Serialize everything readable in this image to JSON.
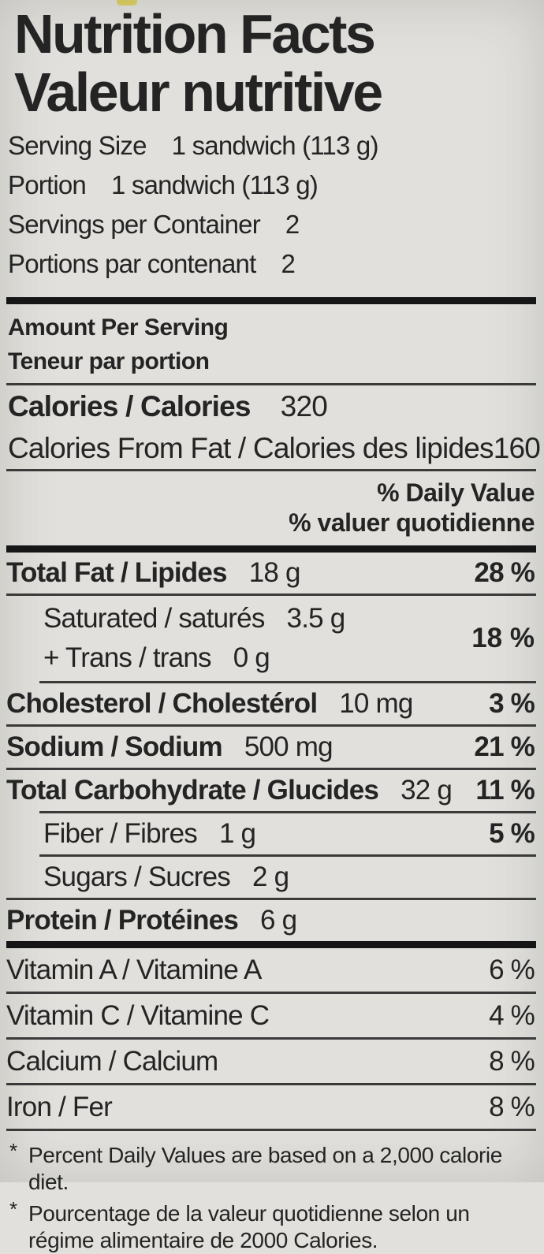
{
  "header": {
    "title_en": "Nutrition Facts",
    "title_fr": "Valeur nutritive"
  },
  "serving": {
    "rows": [
      {
        "label": "Serving Size",
        "value": "1 sandwich (113 g)"
      },
      {
        "label": "Portion",
        "value": "1 sandwich (113 g)"
      },
      {
        "label": "Servings per Container",
        "value": "2"
      },
      {
        "label": "Portions par contenant",
        "value": "2"
      }
    ]
  },
  "amount_per_serving": {
    "en": "Amount Per Serving",
    "fr": "Teneur par portion"
  },
  "calories": {
    "label": "Calories / Calories",
    "value": "320"
  },
  "calories_from_fat": {
    "label": "Calories From Fat / Calories des lipides",
    "value": "160"
  },
  "daily_value_header": {
    "en": "% Daily Value",
    "fr": "% valuer quotidienne"
  },
  "nutrients": {
    "total_fat": {
      "label": "Total Fat / Lipides",
      "qty": "18 g",
      "dv": "28 %"
    },
    "saturated": {
      "label": "Saturated / saturés",
      "qty": "3.5 g"
    },
    "trans": {
      "label": "+ Trans / trans",
      "qty": "0 g"
    },
    "saturated_trans_dv": "18 %",
    "cholesterol": {
      "label": "Cholesterol / Cholestérol",
      "qty": "10 mg",
      "dv": "3 %"
    },
    "sodium": {
      "label": "Sodium / Sodium",
      "qty": "500 mg",
      "dv": "21 %"
    },
    "total_carbohydrate": {
      "label": "Total Carbohydrate / Glucides",
      "qty": "32 g",
      "dv": "11 %"
    },
    "fiber": {
      "label": "Fiber / Fibres",
      "qty": "1 g",
      "dv": "5 %"
    },
    "sugars": {
      "label": "Sugars / Sucres",
      "qty": "2 g"
    },
    "protein": {
      "label": "Protein / Protéines",
      "qty": "6 g"
    }
  },
  "vitamins": {
    "vitamin_a": {
      "label": "Vitamin A / Vitamine A",
      "dv": "6 %"
    },
    "vitamin_c": {
      "label": "Vitamin C / Vitamine C",
      "dv": "4 %"
    },
    "calcium": {
      "label": "Calcium / Calcium",
      "dv": "8 %"
    },
    "iron": {
      "label": "Iron / Fer",
      "dv": "8 %"
    }
  },
  "footnotes": {
    "marker": "*",
    "en": "Percent Daily Values are based on a 2,000 calorie diet.",
    "fr": "Pourcentage de la valeur quotidienne selon un régime alimentaire de 2000 Calories."
  }
}
